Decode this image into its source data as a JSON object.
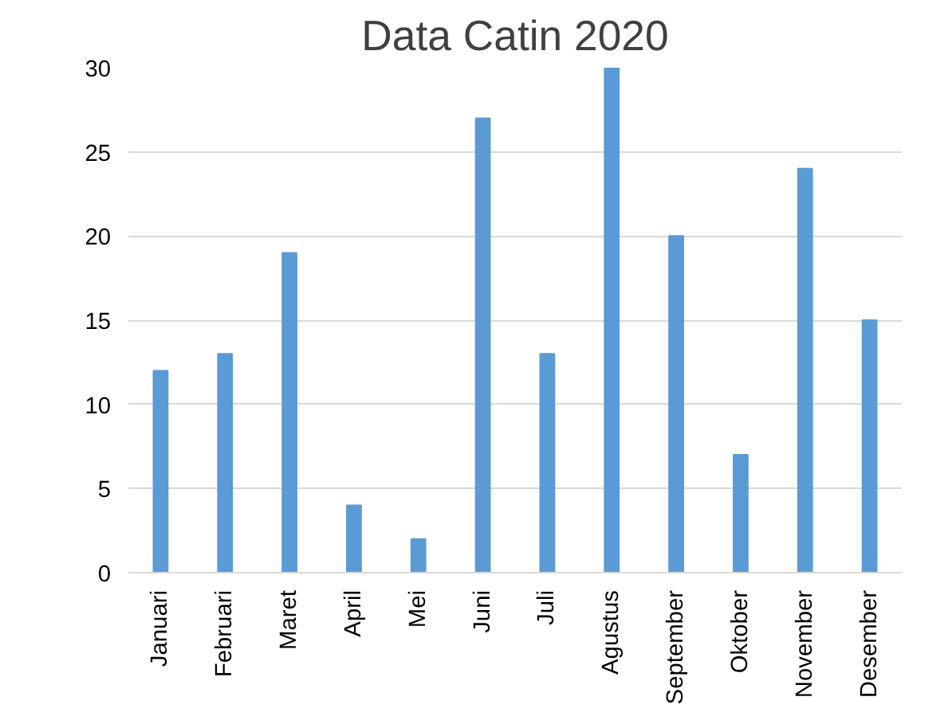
{
  "chart_data": {
    "type": "bar",
    "title": "Data Catin 2020",
    "categories": [
      "Januari",
      "Februari",
      "Maret",
      "April",
      "Mei",
      "Juni",
      "Juli",
      "Agustus",
      "September",
      "Oktober",
      "November",
      "Desember"
    ],
    "values": [
      12,
      13,
      19,
      4,
      2,
      27,
      13,
      30,
      20,
      7,
      24,
      15
    ],
    "color": "#5b9bd5",
    "ylim": [
      0,
      30
    ],
    "yticks": [
      0,
      5,
      10,
      15,
      20,
      25,
      30
    ],
    "grid": "y"
  }
}
